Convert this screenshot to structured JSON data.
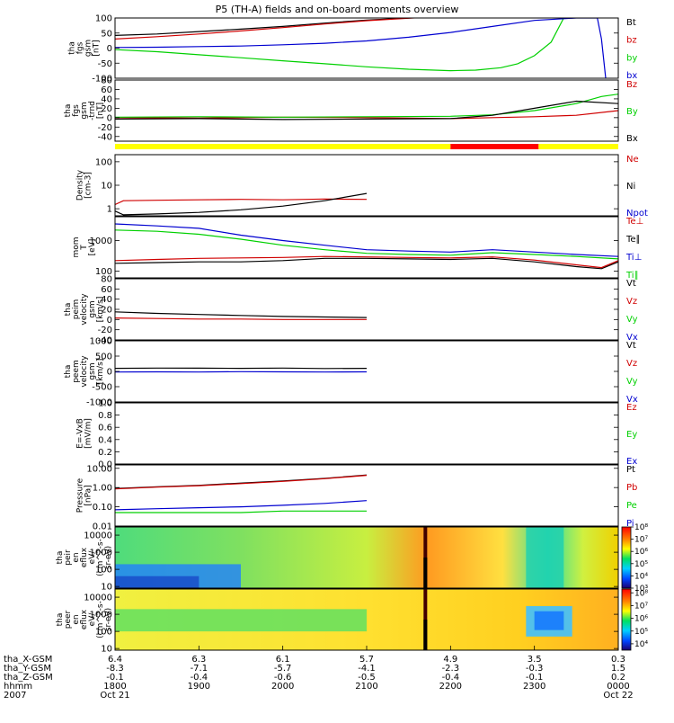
{
  "title": "P5 (TH-A) fields and on-board moments overview",
  "colors": {
    "black": "#000000",
    "red": "#d00000",
    "green": "#00d000",
    "blue": "#0000d0",
    "yellow": "#ffff00",
    "flag_red": "#ff0000"
  },
  "chart_data": [
    {
      "id": "fgs_gsm",
      "type": "line",
      "ylabel": [
        "tha",
        "fgs",
        "gsm",
        "[nT]"
      ],
      "ylim": [
        -100,
        100
      ],
      "yticks": [
        {
          "v": 100,
          "l": "100"
        },
        {
          "v": 50,
          "l": "50"
        },
        {
          "v": 0,
          "l": "0"
        },
        {
          "v": -50,
          "l": "-50"
        },
        {
          "v": -100,
          "l": "-100"
        }
      ],
      "legend": [
        {
          "name": "Bt",
          "color": "#000000"
        },
        {
          "name": "bz",
          "color": "#d00000"
        },
        {
          "name": "by",
          "color": "#00d000"
        },
        {
          "name": "bx",
          "color": "#0000d0"
        }
      ],
      "series": [
        {
          "name": "Bt",
          "color": "#000000",
          "x": [
            18,
            18.5,
            19,
            19.5,
            20,
            20.5,
            21,
            21.5,
            21.8
          ],
          "y": [
            42,
            47,
            55,
            63,
            72,
            83,
            93,
            100,
            104
          ]
        },
        {
          "name": "bz",
          "color": "#d00000",
          "x": [
            18,
            18.5,
            19,
            19.5,
            20,
            20.5,
            21,
            21.5,
            21.8
          ],
          "y": [
            30,
            38,
            47,
            57,
            68,
            80,
            91,
            99,
            104
          ]
        },
        {
          "name": "by",
          "color": "#00d000",
          "x": [
            18,
            18.5,
            19,
            19.5,
            20,
            20.5,
            21,
            21.5,
            22,
            22.3,
            22.6,
            22.8,
            23,
            23.2,
            23.35
          ],
          "y": [
            -5,
            -12,
            -22,
            -32,
            -42,
            -52,
            -62,
            -70,
            -75,
            -73,
            -65,
            -52,
            -25,
            20,
            100
          ]
        },
        {
          "name": "bx",
          "color": "#0000d0",
          "x": [
            18,
            18.5,
            19,
            19.5,
            20,
            20.5,
            21,
            21.5,
            22,
            22.5,
            23,
            23.5,
            23.75,
            23.8,
            23.85
          ],
          "y": [
            2,
            3,
            5,
            7,
            11,
            16,
            24,
            36,
            52,
            72,
            92,
            100,
            100,
            30,
            -100
          ]
        }
      ]
    },
    {
      "id": "fgs_gse",
      "type": "line",
      "ylabel": [
        "tha",
        "fgs",
        "gsm",
        "-trnd",
        "[nT]"
      ],
      "ylim": [
        -50,
        80
      ],
      "yticks": [
        {
          "v": 80,
          "l": "80"
        },
        {
          "v": 60,
          "l": "60"
        },
        {
          "v": 40,
          "l": "40"
        },
        {
          "v": 20,
          "l": "20"
        },
        {
          "v": 0,
          "l": "0"
        },
        {
          "v": -20,
          "l": "-20"
        },
        {
          "v": -40,
          "l": "-40"
        }
      ],
      "legend": [
        {
          "name": "Bz",
          "color": "#d00000"
        },
        {
          "name": "By",
          "color": "#00d000"
        },
        {
          "name": "Bx",
          "color": "#000000"
        }
      ],
      "series": [
        {
          "name": "Bz",
          "color": "#d00000",
          "x": [
            18,
            19,
            20,
            21,
            22,
            22.5,
            23,
            23.5,
            24
          ],
          "y": [
            0,
            -1,
            1,
            0,
            -2,
            0,
            2,
            5,
            15
          ]
        },
        {
          "name": "By",
          "color": "#00d000",
          "x": [
            18,
            19,
            20,
            21,
            22,
            22.5,
            23,
            23.5,
            23.8,
            24
          ],
          "y": [
            1,
            2,
            1,
            2,
            3,
            6,
            15,
            30,
            45,
            50
          ]
        },
        {
          "name": "Bx",
          "color": "#000000",
          "x": [
            18,
            19,
            20,
            21,
            22,
            22.5,
            23,
            23.5,
            24
          ],
          "y": [
            -3,
            -2,
            -4,
            -3,
            -2,
            5,
            20,
            35,
            30
          ]
        }
      ]
    },
    {
      "id": "flags",
      "type": "flag_bar",
      "segments": [
        {
          "x0": 18,
          "x1": 22.0,
          "color": "#ffff00"
        },
        {
          "x0": 22.0,
          "x1": 23.05,
          "color": "#ff0000"
        },
        {
          "x0": 23.05,
          "x1": 24,
          "color": "#ffff00"
        }
      ]
    },
    {
      "id": "density",
      "type": "line",
      "scale": "log",
      "ylabel": [
        "Density",
        "[cm-3]"
      ],
      "ylim": [
        0.5,
        200
      ],
      "yticks": [
        {
          "v": 100,
          "l": "100"
        },
        {
          "v": 10,
          "l": "10"
        },
        {
          "v": 1,
          "l": "1"
        }
      ],
      "legend": [
        {
          "name": "Ne",
          "color": "#d00000"
        },
        {
          "name": "Ni",
          "color": "#000000"
        },
        {
          "name": "Npot",
          "color": "#0000d0"
        }
      ],
      "series": [
        {
          "name": "Ne",
          "color": "#d00000",
          "x": [
            18,
            18.1,
            18.5,
            19,
            19.5,
            20,
            20.5,
            21
          ],
          "y": [
            1.5,
            2.2,
            2.3,
            2.4,
            2.5,
            2.4,
            2.6,
            2.5
          ]
        },
        {
          "name": "Ni",
          "color": "#000000",
          "x": [
            18,
            18.1,
            18.5,
            19,
            19.5,
            20,
            20.5,
            21
          ],
          "y": [
            0.8,
            0.55,
            0.6,
            0.7,
            0.9,
            1.3,
            2.2,
            4.5
          ]
        }
      ]
    },
    {
      "id": "mom_temp",
      "type": "line",
      "scale": "log",
      "ylabel": [
        "mom",
        "T",
        "[eV]"
      ],
      "ylim": [
        60,
        6000
      ],
      "yticks": [
        {
          "v": 1000,
          "l": "1000"
        },
        {
          "v": 100,
          "l": "100"
        }
      ],
      "legend": [
        {
          "name": "Te⊥",
          "color": "#d00000"
        },
        {
          "name": "Te∥",
          "color": "#000000"
        },
        {
          "name": "Ti⊥",
          "color": "#0000d0"
        },
        {
          "name": "Ti∥",
          "color": "#00d000"
        }
      ],
      "series": [
        {
          "name": "Ti⊥",
          "color": "#0000d0",
          "x": [
            18,
            18.5,
            19,
            19.5,
            20,
            20.5,
            21,
            21.5,
            22,
            22.5,
            23,
            23.5,
            24
          ],
          "y": [
            3500,
            3000,
            2500,
            1500,
            1000,
            700,
            500,
            450,
            420,
            500,
            420,
            350,
            300
          ]
        },
        {
          "name": "Ti∥",
          "color": "#00d000",
          "x": [
            18,
            18.5,
            19,
            19.5,
            20,
            20.5,
            21,
            21.5,
            22,
            22.5,
            23,
            23.5,
            24
          ],
          "y": [
            2200,
            2000,
            1600,
            1100,
            700,
            500,
            380,
            350,
            330,
            400,
            350,
            300,
            250
          ]
        },
        {
          "name": "Te∥",
          "color": "#000000",
          "x": [
            18,
            18.5,
            19,
            19.5,
            20,
            20.5,
            21,
            21.5,
            22,
            22.5,
            23,
            23.5,
            23.8,
            24
          ],
          "y": [
            180,
            190,
            200,
            200,
            220,
            260,
            260,
            250,
            240,
            260,
            200,
            140,
            120,
            200
          ]
        },
        {
          "name": "Te⊥",
          "color": "#d00000",
          "x": [
            18,
            18.5,
            19,
            19.5,
            20,
            20.5,
            21,
            21.5,
            22,
            22.5,
            23,
            23.5,
            23.8,
            24
          ],
          "y": [
            220,
            240,
            260,
            270,
            280,
            300,
            290,
            280,
            270,
            290,
            230,
            160,
            130,
            220
          ]
        }
      ]
    },
    {
      "id": "peim_velocity",
      "type": "line",
      "ylabel": [
        "tha",
        "peim",
        "velocity",
        "gsm",
        "[km/s]"
      ],
      "ylim": [
        -40,
        80
      ],
      "yticks": [
        {
          "v": 80,
          "l": "80"
        },
        {
          "v": 60,
          "l": "60"
        },
        {
          "v": 40,
          "l": "40"
        },
        {
          "v": 20,
          "l": "20"
        },
        {
          "v": 0,
          "l": "0"
        },
        {
          "v": -20,
          "l": "-20"
        },
        {
          "v": -40,
          "l": "-40"
        }
      ],
      "legend": [
        {
          "name": "Vt",
          "color": "#000000"
        },
        {
          "name": "Vz",
          "color": "#d00000"
        },
        {
          "name": "Vy",
          "color": "#00d000"
        },
        {
          "name": "Vx",
          "color": "#0000d0"
        }
      ],
      "series": [
        {
          "name": "Vt",
          "color": "#000000",
          "x": [
            18,
            18.5,
            19,
            19.5,
            20,
            20.5,
            21
          ],
          "y": [
            15,
            12,
            10,
            8,
            6,
            5,
            4
          ]
        },
        {
          "name": "Vz",
          "color": "#d00000",
          "x": [
            18,
            18.5,
            19,
            19.5,
            20,
            20.5,
            21
          ],
          "y": [
            3,
            2,
            1,
            1,
            0,
            0,
            0
          ]
        }
      ]
    },
    {
      "id": "peem_velocity",
      "type": "line",
      "ylabel": [
        "tha",
        "peem",
        "velocity",
        "gsm",
        "[km/s]"
      ],
      "ylim": [
        -1000,
        1000
      ],
      "yticks": [
        {
          "v": 1000,
          "l": "1000"
        },
        {
          "v": 500,
          "l": "500"
        },
        {
          "v": 0,
          "l": "0"
        },
        {
          "v": -500,
          "l": "-500"
        },
        {
          "v": -1000,
          "l": "-1000"
        }
      ],
      "legend": [
        {
          "name": "Vt",
          "color": "#000000"
        },
        {
          "name": "Vz",
          "color": "#d00000"
        },
        {
          "name": "Vy",
          "color": "#00d000"
        },
        {
          "name": "Vx",
          "color": "#0000d0"
        }
      ],
      "series": [
        {
          "name": "Vt",
          "color": "#000000",
          "x": [
            18,
            18.5,
            19,
            19.5,
            20,
            20.5,
            21
          ],
          "y": [
            100,
            110,
            105,
            100,
            110,
            95,
            100
          ]
        },
        {
          "name": "Vx",
          "color": "#0000d0",
          "x": [
            18,
            18.5,
            19,
            19.5,
            20,
            20.5,
            21
          ],
          "y": [
            -20,
            -15,
            -20,
            -10,
            -15,
            -20,
            -15
          ]
        }
      ]
    },
    {
      "id": "e_vxb",
      "type": "line",
      "ylabel": [
        "E=-VxB",
        "[mV/m]"
      ],
      "ylim": [
        0,
        1
      ],
      "yticks": [
        {
          "v": 1.0,
          "l": "1.0"
        },
        {
          "v": 0.8,
          "l": "0.8"
        },
        {
          "v": 0.6,
          "l": "0.6"
        },
        {
          "v": 0.4,
          "l": "0.4"
        },
        {
          "v": 0.2,
          "l": "0.2"
        },
        {
          "v": 0.0,
          "l": "0.0"
        }
      ],
      "legend": [
        {
          "name": "Ez",
          "color": "#d00000"
        },
        {
          "name": "Ey",
          "color": "#00d000"
        },
        {
          "name": "Ex",
          "color": "#0000d0"
        }
      ],
      "series": []
    },
    {
      "id": "pressure",
      "type": "line",
      "scale": "log",
      "ylabel": [
        "Pressure",
        "[nPa]"
      ],
      "ylim": [
        0.01,
        15
      ],
      "yticks": [
        {
          "v": 10,
          "l": "10.00"
        },
        {
          "v": 1,
          "l": "1.00"
        },
        {
          "v": 0.1,
          "l": "0.10"
        },
        {
          "v": 0.01,
          "l": "0.01"
        }
      ],
      "legend": [
        {
          "name": "Pt",
          "color": "#000000"
        },
        {
          "name": "Pb",
          "color": "#d00000"
        },
        {
          "name": "Pe",
          "color": "#00d000"
        },
        {
          "name": "Pi",
          "color": "#0000d0"
        }
      ],
      "series": [
        {
          "name": "Pt",
          "color": "#000000",
          "x": [
            18,
            18.5,
            19,
            19.5,
            20,
            20.5,
            21
          ],
          "y": [
            0.9,
            1.1,
            1.3,
            1.7,
            2.2,
            3.0,
            4.5
          ]
        },
        {
          "name": "Pb",
          "color": "#d00000",
          "x": [
            18,
            18.5,
            19,
            19.5,
            20,
            20.5,
            21
          ],
          "y": [
            0.85,
            1.05,
            1.25,
            1.6,
            2.1,
            2.9,
            4.3
          ]
        },
        {
          "name": "Pi",
          "color": "#0000d0",
          "x": [
            18,
            18.5,
            19,
            19.5,
            20,
            20.5,
            21
          ],
          "y": [
            0.07,
            0.08,
            0.09,
            0.1,
            0.12,
            0.15,
            0.21
          ]
        },
        {
          "name": "Pe",
          "color": "#00d000",
          "x": [
            18,
            18.5,
            19,
            19.5,
            20,
            20.5,
            21
          ],
          "y": [
            0.05,
            0.05,
            0.05,
            0.05,
            0.06,
            0.06,
            0.06
          ]
        }
      ]
    },
    {
      "id": "peir_spec",
      "type": "heatmap",
      "scale": "log",
      "ylabel": [
        "tha",
        "peir",
        "en",
        "eflux",
        "eV/",
        "(cm^2-s-",
        "sr-eV)"
      ],
      "ylim": [
        8,
        30000
      ],
      "yticks": [
        {
          "v": 10000,
          "l": "10000"
        },
        {
          "v": 1000,
          "l": "1000"
        },
        {
          "v": 100,
          "l": "100"
        },
        {
          "v": 10,
          "l": "10"
        }
      ],
      "colorbar": [
        {
          "e": 3,
          "l": "10³"
        },
        {
          "e": 4,
          "l": "10⁴"
        },
        {
          "e": 5,
          "l": "10⁵"
        },
        {
          "e": 6,
          "l": "10⁶"
        },
        {
          "e": 7,
          "l": "10⁷"
        },
        {
          "e": 8,
          "l": "10⁸"
        }
      ],
      "clim": [
        3,
        8
      ],
      "gap_x": 21.7
    },
    {
      "id": "peer_spec",
      "type": "heatmap",
      "scale": "log",
      "ylabel": [
        "tha",
        "peer",
        "en",
        "eflux",
        "eV/",
        "(cm^2-s-",
        "sr-eV)"
      ],
      "ylim": [
        8,
        30000
      ],
      "yticks": [
        {
          "v": 10000,
          "l": "10000"
        },
        {
          "v": 1000,
          "l": "1000"
        },
        {
          "v": 100,
          "l": "100"
        },
        {
          "v": 10,
          "l": "10"
        }
      ],
      "colorbar": [
        {
          "e": 4,
          "l": "10⁴"
        },
        {
          "e": 5,
          "l": "10⁵"
        },
        {
          "e": 6,
          "l": "10⁶"
        },
        {
          "e": 7,
          "l": "10⁷"
        },
        {
          "e": 8,
          "l": "10⁸"
        }
      ],
      "clim": [
        3.5,
        8.3
      ],
      "gap_x": 21.7
    }
  ],
  "xaxis": {
    "xlim": [
      18,
      24
    ],
    "rows": [
      {
        "label": "tha_X-GSM",
        "values": [
          "6.4",
          "6.3",
          "6.1",
          "5.7",
          "4.9",
          "3.5",
          "0.3"
        ]
      },
      {
        "label": "tha_Y-GSM",
        "values": [
          "-8.3",
          "-7.1",
          "-5.7",
          "-4.1",
          "-2.3",
          "-0.3",
          "1.5"
        ]
      },
      {
        "label": "tha_Z-GSM",
        "values": [
          "-0.1",
          "-0.4",
          "-0.6",
          "-0.5",
          "-0.4",
          "-0.1",
          "0.2"
        ]
      },
      {
        "label": "hhmm",
        "values": [
          "1800",
          "1900",
          "2000",
          "2100",
          "2200",
          "2300",
          "0000"
        ]
      },
      {
        "label": "2007",
        "values": [
          "Oct 21",
          "",
          "",
          "",
          "",
          "",
          "Oct 22"
        ]
      }
    ]
  }
}
